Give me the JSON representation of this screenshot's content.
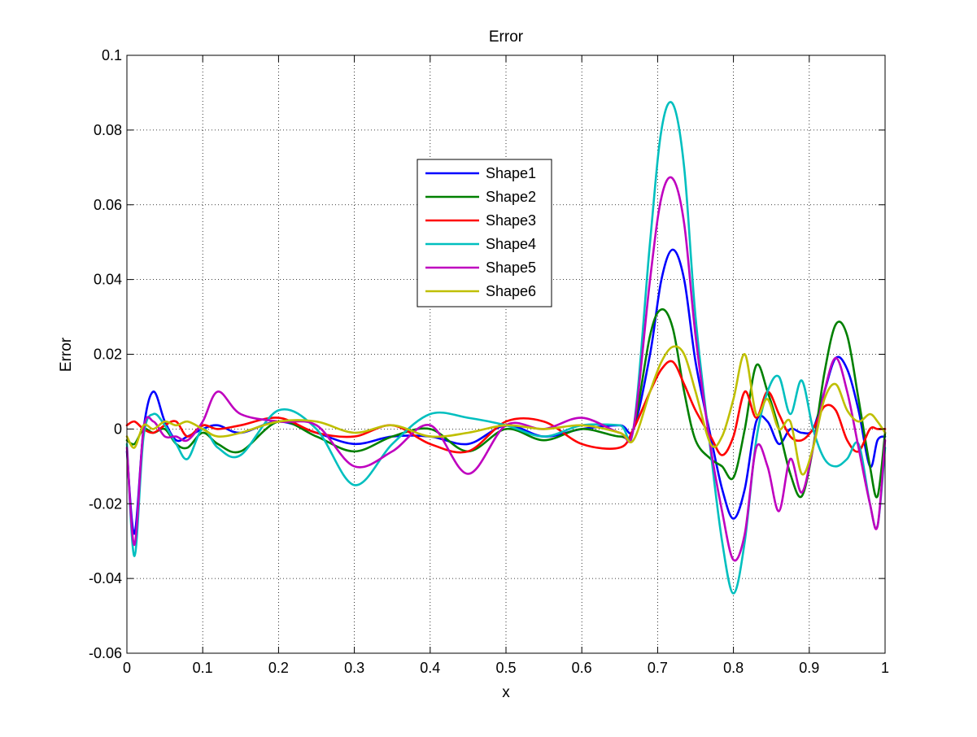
{
  "chart_data": {
    "type": "line",
    "title": "Error",
    "xlabel": "x",
    "ylabel": "Error",
    "xlim": [
      0,
      1
    ],
    "ylim": [
      -0.06,
      0.1
    ],
    "grid": true,
    "legend_position": "upper-center",
    "x_ticks": [
      0,
      0.1,
      0.2,
      0.3,
      0.4,
      0.5,
      0.6,
      0.7,
      0.8,
      0.9,
      1
    ],
    "x_tick_labels": [
      "0",
      "0.1",
      "0.2",
      "0.3",
      "0.4",
      "0.5",
      "0.6",
      "0.7",
      "0.8",
      "0.9",
      "1"
    ],
    "y_ticks": [
      -0.06,
      -0.04,
      -0.02,
      0,
      0.02,
      0.04,
      0.06,
      0.08,
      0.1
    ],
    "y_tick_labels": [
      "-0.06",
      "-0.04",
      "-0.02",
      "0",
      "0.02",
      "0.04",
      "0.06",
      "0.08",
      "0.1"
    ],
    "series": [
      {
        "name": "Shape1",
        "color": "#0000ff",
        "x": [
          0,
          0.01,
          0.022,
          0.035,
          0.05,
          0.065,
          0.08,
          0.1,
          0.12,
          0.15,
          0.2,
          0.25,
          0.3,
          0.35,
          0.4,
          0.45,
          0.5,
          0.55,
          0.6,
          0.65,
          0.668,
          0.69,
          0.705,
          0.72,
          0.735,
          0.75,
          0.77,
          0.785,
          0.8,
          0.815,
          0.83,
          0.845,
          0.86,
          0.875,
          0.89,
          0.905,
          0.92,
          0.935,
          0.95,
          0.965,
          0.98,
          0.99,
          1
        ],
        "y": [
          -0.006,
          -0.028,
          0,
          0.01,
          0.002,
          -0.003,
          -0.002,
          0,
          0.001,
          -0.001,
          0.002,
          -0.001,
          -0.004,
          -0.002,
          -0.002,
          -0.004,
          0.001,
          -0.002,
          0,
          0.001,
          0,
          0.02,
          0.04,
          0.048,
          0.04,
          0.018,
          -0.002,
          -0.016,
          -0.024,
          -0.016,
          0.002,
          0.002,
          -0.004,
          0,
          -0.001,
          0,
          0.01,
          0.019,
          0.016,
          0.005,
          -0.01,
          -0.003,
          -0.002
        ]
      },
      {
        "name": "Shape2",
        "color": "#008000",
        "x": [
          0,
          0.01,
          0.022,
          0.035,
          0.05,
          0.065,
          0.08,
          0.1,
          0.12,
          0.15,
          0.2,
          0.25,
          0.3,
          0.35,
          0.4,
          0.45,
          0.5,
          0.55,
          0.6,
          0.65,
          0.668,
          0.69,
          0.705,
          0.72,
          0.735,
          0.75,
          0.77,
          0.785,
          0.8,
          0.815,
          0.83,
          0.845,
          0.86,
          0.875,
          0.89,
          0.905,
          0.92,
          0.935,
          0.95,
          0.965,
          0.98,
          0.99,
          1
        ],
        "y": [
          -0.003,
          -0.004,
          0,
          -0.001,
          0,
          -0.004,
          -0.005,
          -0.001,
          -0.004,
          -0.006,
          0.002,
          -0.002,
          -0.006,
          -0.002,
          0,
          -0.006,
          0,
          -0.003,
          0,
          -0.002,
          0,
          0.025,
          0.032,
          0.027,
          0.01,
          -0.003,
          -0.008,
          -0.01,
          -0.013,
          0,
          0.017,
          0.01,
          0,
          -0.012,
          -0.018,
          -0.005,
          0.015,
          0.028,
          0.025,
          0.008,
          -0.01,
          -0.018,
          -0.001
        ]
      },
      {
        "name": "Shape3",
        "color": "#ff0000",
        "x": [
          0,
          0.01,
          0.022,
          0.035,
          0.05,
          0.065,
          0.08,
          0.1,
          0.12,
          0.15,
          0.2,
          0.25,
          0.3,
          0.35,
          0.4,
          0.45,
          0.5,
          0.55,
          0.6,
          0.65,
          0.668,
          0.69,
          0.705,
          0.72,
          0.735,
          0.75,
          0.77,
          0.785,
          0.8,
          0.815,
          0.83,
          0.845,
          0.86,
          0.875,
          0.89,
          0.905,
          0.92,
          0.935,
          0.95,
          0.965,
          0.98,
          0.99,
          1
        ],
        "y": [
          0.001,
          0.002,
          0,
          -0.001,
          0.001,
          0.002,
          -0.002,
          0.001,
          0,
          0.001,
          0.003,
          -0.001,
          -0.002,
          0.001,
          -0.004,
          -0.006,
          0.002,
          0.002,
          -0.004,
          -0.005,
          0,
          0.01,
          0.016,
          0.018,
          0.012,
          0.005,
          -0.002,
          -0.007,
          -0.002,
          0.01,
          0.003,
          0.01,
          0.004,
          -0.002,
          -0.003,
          0,
          0.006,
          0.005,
          -0.003,
          -0.006,
          0,
          0,
          0
        ]
      },
      {
        "name": "Shape4",
        "color": "#00bfbf",
        "x": [
          0,
          0.01,
          0.022,
          0.035,
          0.05,
          0.065,
          0.08,
          0.1,
          0.12,
          0.15,
          0.2,
          0.25,
          0.3,
          0.35,
          0.4,
          0.45,
          0.5,
          0.55,
          0.6,
          0.65,
          0.668,
          0.69,
          0.705,
          0.72,
          0.735,
          0.75,
          0.77,
          0.785,
          0.8,
          0.815,
          0.83,
          0.845,
          0.86,
          0.875,
          0.89,
          0.905,
          0.92,
          0.935,
          0.95,
          0.965,
          0.98,
          0.99,
          1
        ],
        "y": [
          -0.004,
          -0.034,
          -0.002,
          0.004,
          0.001,
          -0.004,
          -0.008,
          0,
          -0.005,
          -0.007,
          0.005,
          0,
          -0.015,
          -0.004,
          0.004,
          0.003,
          0.001,
          -0.002,
          0.001,
          0.001,
          0,
          0.05,
          0.08,
          0.087,
          0.07,
          0.03,
          -0.006,
          -0.03,
          -0.044,
          -0.03,
          -0.003,
          0.01,
          0.014,
          0.004,
          0.013,
          0,
          -0.008,
          -0.01,
          -0.008,
          -0.004,
          -0.02,
          -0.026,
          -0.005
        ]
      },
      {
        "name": "Shape5",
        "color": "#bf00bf",
        "x": [
          0,
          0.01,
          0.022,
          0.035,
          0.05,
          0.065,
          0.08,
          0.1,
          0.12,
          0.15,
          0.2,
          0.25,
          0.3,
          0.35,
          0.4,
          0.45,
          0.5,
          0.55,
          0.6,
          0.65,
          0.668,
          0.69,
          0.705,
          0.72,
          0.735,
          0.75,
          0.77,
          0.785,
          0.8,
          0.815,
          0.83,
          0.845,
          0.86,
          0.875,
          0.89,
          0.905,
          0.92,
          0.935,
          0.95,
          0.965,
          0.98,
          0.99,
          1
        ],
        "y": [
          -0.005,
          -0.031,
          0,
          0.002,
          -0.002,
          -0.002,
          -0.003,
          0.002,
          0.01,
          0.004,
          0.002,
          0.001,
          -0.01,
          -0.006,
          0.001,
          -0.012,
          0.001,
          0,
          0.003,
          -0.001,
          0,
          0.04,
          0.062,
          0.067,
          0.055,
          0.025,
          -0.005,
          -0.022,
          -0.035,
          -0.028,
          -0.005,
          -0.01,
          -0.022,
          -0.008,
          -0.017,
          -0.005,
          0.01,
          0.019,
          0.01,
          -0.005,
          -0.02,
          -0.026,
          -0.003
        ]
      },
      {
        "name": "Shape6",
        "color": "#bfbf00",
        "x": [
          0,
          0.01,
          0.022,
          0.035,
          0.05,
          0.065,
          0.08,
          0.1,
          0.12,
          0.15,
          0.2,
          0.25,
          0.3,
          0.35,
          0.4,
          0.45,
          0.5,
          0.55,
          0.6,
          0.65,
          0.668,
          0.69,
          0.705,
          0.72,
          0.735,
          0.75,
          0.77,
          0.785,
          0.8,
          0.815,
          0.83,
          0.845,
          0.86,
          0.875,
          0.89,
          0.905,
          0.92,
          0.935,
          0.95,
          0.965,
          0.98,
          0.99,
          1
        ],
        "y": [
          -0.002,
          -0.005,
          0.001,
          0,
          0.002,
          0.001,
          0.002,
          0,
          -0.002,
          -0.001,
          0.002,
          0.002,
          -0.001,
          0.001,
          -0.002,
          -0.001,
          0.001,
          0,
          0.001,
          -0.001,
          -0.003,
          0.01,
          0.018,
          0.022,
          0.02,
          0.01,
          -0.004,
          -0.002,
          0.008,
          0.02,
          0.004,
          0.008,
          0,
          0.002,
          -0.012,
          -0.005,
          0.008,
          0.012,
          0.005,
          0.002,
          0.004,
          0.002,
          -0.001
        ]
      }
    ]
  }
}
